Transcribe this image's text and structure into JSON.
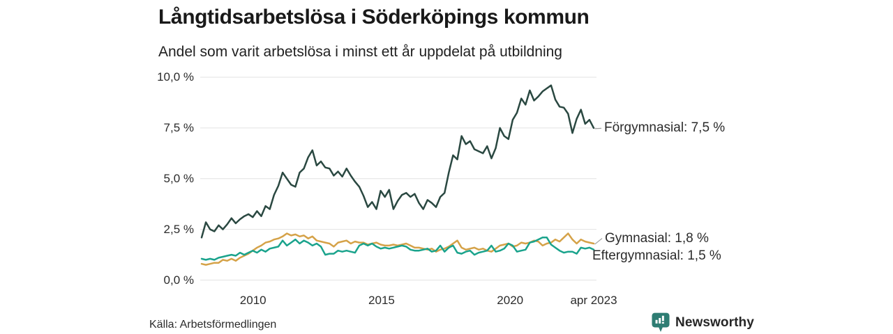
{
  "header": {
    "title": "Långtidsarbetslösa i Söderköpings kommun",
    "subtitle": "Andel som varit arbetslösa i minst ett år uppdelat på utbildning"
  },
  "source": {
    "label": "Källa: Arbetsförmedlingen"
  },
  "branding": {
    "name": "Newsworthy",
    "color": "#2e7d73"
  },
  "chart_data": {
    "type": "line",
    "title": "Långtidsarbetslösa i Söderköpings kommun",
    "subtitle": "Andel som varit arbetslösa i minst ett år uppdelat på utbildning",
    "x_description": "Tid, månadsvis från jan 2008 till apr 2023 (värden jämnt fördelade)",
    "x_start": 2008,
    "x_end": 2023.25,
    "ylim": [
      0,
      10
    ],
    "grid": "horizontal",
    "grid_color": "#e2e2e2",
    "text_color": "#2b2b2b",
    "connector_color": "#9e9e9e",
    "legend_position": "end-of-line labels, right of plot",
    "y_ticks": [
      {
        "value": 0,
        "label": "0,0 %"
      },
      {
        "value": 2.5,
        "label": "2,5 %"
      },
      {
        "value": 5,
        "label": "5,0 %"
      },
      {
        "value": 7.5,
        "label": "7,5 %"
      },
      {
        "value": 10,
        "label": "10,0 %"
      }
    ],
    "x_ticks": [
      {
        "value": 2010,
        "label": "2010"
      },
      {
        "value": 2015,
        "label": "2015"
      },
      {
        "value": 2020,
        "label": "2020"
      },
      {
        "value": 2023.25,
        "label": "apr 2023"
      }
    ],
    "series": [
      {
        "name": "Förgymnasial",
        "label": "Förgymnasial: 7,5 %",
        "last_value": "7,5 %",
        "color": "#2a4841",
        "values": [
          2.1,
          2.85,
          2.5,
          2.4,
          2.7,
          2.5,
          2.75,
          3.05,
          2.8,
          3.0,
          3.15,
          3.25,
          3.1,
          3.4,
          3.15,
          3.65,
          3.5,
          4.2,
          4.65,
          5.3,
          5.0,
          4.7,
          4.6,
          5.3,
          5.5,
          6.05,
          6.4,
          5.65,
          5.85,
          5.55,
          5.5,
          5.15,
          5.35,
          5.1,
          5.5,
          5.15,
          4.85,
          4.6,
          4.15,
          3.6,
          3.85,
          3.5,
          4.4,
          4.1,
          4.45,
          3.5,
          3.9,
          4.2,
          4.3,
          4.1,
          4.25,
          3.8,
          3.5,
          3.95,
          3.8,
          3.6,
          4.1,
          4.3,
          5.3,
          6.15,
          5.95,
          7.1,
          6.7,
          6.85,
          6.45,
          6.35,
          6.25,
          6.6,
          6.0,
          6.5,
          7.5,
          7.1,
          6.95,
          7.9,
          8.25,
          8.95,
          8.65,
          9.35,
          8.85,
          9.05,
          9.3,
          9.45,
          9.6,
          8.9,
          8.55,
          8.5,
          8.2,
          7.25,
          7.95,
          8.4,
          7.7,
          7.9,
          7.5
        ]
      },
      {
        "name": "Gymnasial",
        "label": "Gymnasial: 1,8 %",
        "last_value": "1,8 %",
        "color": "#d5a248",
        "values": [
          0.8,
          0.75,
          0.8,
          0.85,
          0.85,
          1.0,
          0.95,
          1.05,
          0.95,
          1.1,
          1.2,
          1.3,
          1.45,
          1.6,
          1.7,
          1.85,
          1.9,
          2.0,
          2.05,
          2.15,
          2.3,
          2.2,
          2.25,
          2.15,
          2.2,
          2.05,
          2.15,
          1.95,
          1.9,
          1.85,
          1.8,
          1.65,
          1.85,
          1.9,
          1.95,
          1.8,
          1.9,
          1.85,
          1.85,
          1.75,
          1.8,
          1.85,
          1.75,
          1.7,
          1.7,
          1.75,
          1.7,
          1.75,
          1.8,
          1.7,
          1.6,
          1.6,
          1.55,
          1.5,
          1.55,
          1.4,
          1.5,
          1.55,
          1.65,
          1.8,
          1.95,
          1.6,
          1.5,
          1.55,
          1.6,
          1.5,
          1.55,
          1.45,
          1.4,
          1.55,
          1.7,
          1.75,
          1.8,
          1.65,
          1.7,
          1.85,
          1.8,
          1.85,
          1.95,
          1.9,
          1.7,
          1.8,
          1.85,
          2.0,
          1.9,
          2.1,
          2.3,
          2.0,
          1.8,
          2.0,
          1.9,
          1.85,
          1.8
        ]
      },
      {
        "name": "Eftergymnasial",
        "label": "Eftergymnasial: 1,5 %",
        "last_value": "1,5 %",
        "color": "#1aa38c",
        "values": [
          1.05,
          1.0,
          1.05,
          1.0,
          1.1,
          1.15,
          1.2,
          1.25,
          1.2,
          1.35,
          1.25,
          1.35,
          1.45,
          1.35,
          1.5,
          1.4,
          1.55,
          1.6,
          1.65,
          1.95,
          1.7,
          1.85,
          2.0,
          1.8,
          1.95,
          1.85,
          1.7,
          1.8,
          1.65,
          1.25,
          1.3,
          1.3,
          1.45,
          1.4,
          1.45,
          1.4,
          1.35,
          1.7,
          1.8,
          1.7,
          1.8,
          1.65,
          1.55,
          1.6,
          1.55,
          1.6,
          1.65,
          1.7,
          1.65,
          1.5,
          1.45,
          1.45,
          1.5,
          1.55,
          1.4,
          1.45,
          1.7,
          1.4,
          1.6,
          1.7,
          1.35,
          1.3,
          1.4,
          1.45,
          1.25,
          1.35,
          1.4,
          1.45,
          1.7,
          1.4,
          1.45,
          1.55,
          1.8,
          1.7,
          1.4,
          1.45,
          1.5,
          1.85,
          1.9,
          2.0,
          2.1,
          2.1,
          1.75,
          1.6,
          1.45,
          1.35,
          1.4,
          1.4,
          1.3,
          1.6,
          1.55,
          1.6,
          1.5
        ]
      }
    ]
  }
}
